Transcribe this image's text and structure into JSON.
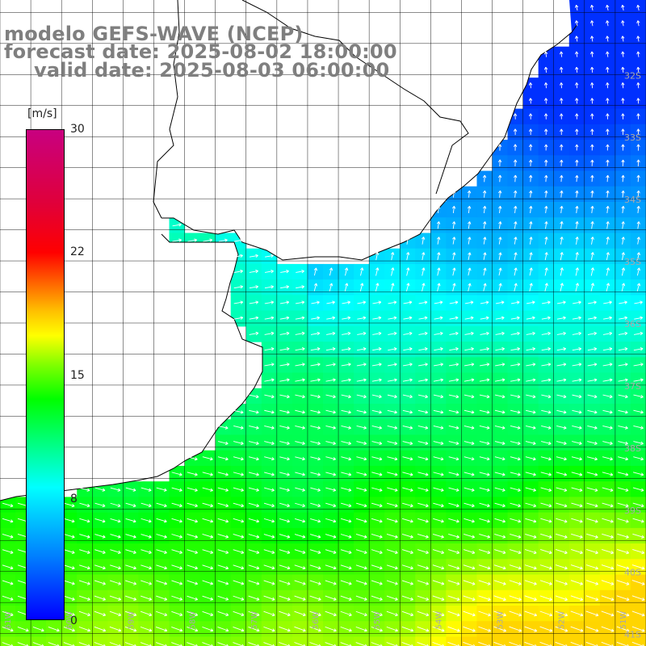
{
  "titles": {
    "model": "modelo GEFS-WAVE (NCEP)",
    "forecast": "forecast date: 2025-08-02 18:00:00",
    "valid": "valid date: 2025-08-03 06:00:00"
  },
  "colorbar": {
    "unit": "[m/s]",
    "ticks": [
      {
        "value": 30,
        "label": "30"
      },
      {
        "value": 22,
        "label": "22"
      },
      {
        "value": 15,
        "label": "15"
      },
      {
        "value": 8,
        "label": "8"
      },
      {
        "value": 0,
        "label": "0"
      }
    ]
  },
  "map": {
    "lat_labels": [
      "32S",
      "33S",
      "34S",
      "35S",
      "36S",
      "37S",
      "38S",
      "39S",
      "40S",
      "41S"
    ],
    "lon_labels": [
      "61W",
      "60W",
      "59W",
      "58W",
      "57W",
      "56W",
      "55W",
      "54W",
      "53W",
      "52W",
      "51W"
    ],
    "lon_range": [
      -61,
      -50.5
    ],
    "lat_range": [
      -41.2,
      -30.8
    ],
    "grid": true,
    "colors": {
      "land": "#ffffff",
      "coast": "#000000",
      "grid": "#000000",
      "label": "#a9a9a9",
      "arrow": "#ffffff"
    }
  },
  "wind": {
    "unit": "m/s",
    "scale_max": 30,
    "cell_deg": 0.25,
    "wind_speed_range": [
      2,
      18
    ]
  }
}
